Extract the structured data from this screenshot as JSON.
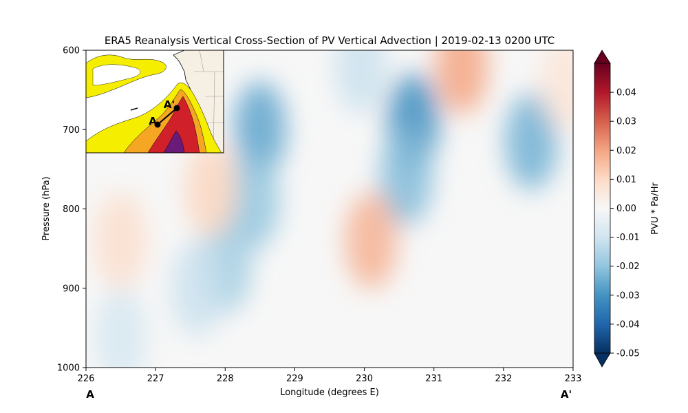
{
  "chart_data": {
    "type": "heatmap",
    "title": "ERA5 Reanalysis Vertical Cross-Section of PV Vertical Advection | 2019-02-13 0200 UTC",
    "xlabel": "Longitude (degrees E)",
    "ylabel": "Pressure (hPa)",
    "xlim": [
      226,
      233
    ],
    "ylim": [
      1000,
      600
    ],
    "x_ticks": [
      "226",
      "227",
      "228",
      "229",
      "230",
      "231",
      "232",
      "233"
    ],
    "y_ticks": [
      "600",
      "700",
      "800",
      "900",
      "1000"
    ],
    "section_start_label": "A",
    "section_end_label": "A'",
    "colorbar": {
      "label": "PVU * Pa/Hr",
      "min": -0.05,
      "max": 0.05,
      "ticks": [
        "0.04",
        "0.03",
        "0.02",
        "0.01",
        "0.00",
        "-0.01",
        "-0.02",
        "-0.03",
        "-0.04",
        "-0.05"
      ],
      "colormap": "RdBu_r",
      "extend": "both"
    },
    "field_features": [
      {
        "lon": 228.5,
        "p": 700,
        "value": -0.012
      },
      {
        "lon": 228.4,
        "p": 790,
        "value": -0.009
      },
      {
        "lon": 228.0,
        "p": 870,
        "value": -0.008
      },
      {
        "lon": 227.6,
        "p": 900,
        "value": -0.005
      },
      {
        "lon": 230.7,
        "p": 690,
        "value": -0.014
      },
      {
        "lon": 230.6,
        "p": 760,
        "value": -0.01
      },
      {
        "lon": 232.4,
        "p": 715,
        "value": -0.011
      },
      {
        "lon": 229.95,
        "p": 620,
        "value": -0.005
      },
      {
        "lon": 226.5,
        "p": 960,
        "value": -0.004
      },
      {
        "lon": 230.1,
        "p": 840,
        "value": 0.008
      },
      {
        "lon": 231.4,
        "p": 620,
        "value": 0.009
      },
      {
        "lon": 227.8,
        "p": 775,
        "value": 0.005
      },
      {
        "lon": 226.5,
        "p": 840,
        "value": 0.004
      },
      {
        "lon": 232.9,
        "p": 640,
        "value": 0.003
      }
    ],
    "inset_map": {
      "description_points": [
        "A",
        "A'"
      ]
    }
  }
}
